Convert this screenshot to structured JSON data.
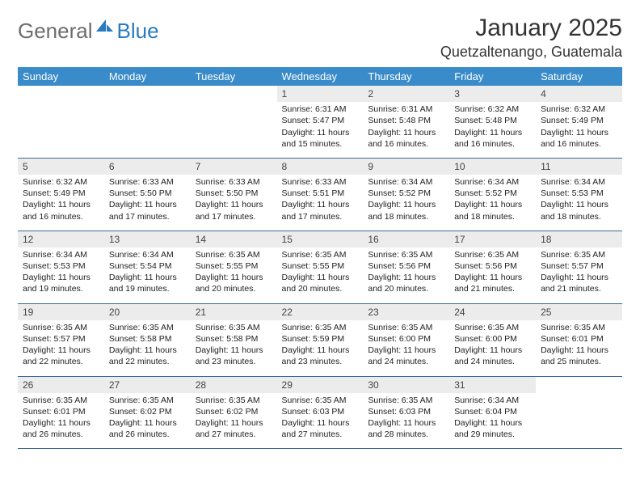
{
  "logo": {
    "text1": "General",
    "text2": "Blue"
  },
  "title": "January 2025",
  "location": "Quetzaltenango, Guatemala",
  "colors": {
    "header_bg": "#3a8bc9",
    "header_text": "#ffffff",
    "daynum_bg": "#ececec",
    "row_border": "#3a6b9a",
    "logo_gray": "#6c6c6c",
    "logo_blue": "#2a7bbf"
  },
  "weekdays": [
    "Sunday",
    "Monday",
    "Tuesday",
    "Wednesday",
    "Thursday",
    "Friday",
    "Saturday"
  ],
  "weeks": [
    [
      null,
      null,
      null,
      {
        "n": "1",
        "sr": "Sunrise: 6:31 AM",
        "ss": "Sunset: 5:47 PM",
        "d1": "Daylight: 11 hours",
        "d2": "and 15 minutes."
      },
      {
        "n": "2",
        "sr": "Sunrise: 6:31 AM",
        "ss": "Sunset: 5:48 PM",
        "d1": "Daylight: 11 hours",
        "d2": "and 16 minutes."
      },
      {
        "n": "3",
        "sr": "Sunrise: 6:32 AM",
        "ss": "Sunset: 5:48 PM",
        "d1": "Daylight: 11 hours",
        "d2": "and 16 minutes."
      },
      {
        "n": "4",
        "sr": "Sunrise: 6:32 AM",
        "ss": "Sunset: 5:49 PM",
        "d1": "Daylight: 11 hours",
        "d2": "and 16 minutes."
      }
    ],
    [
      {
        "n": "5",
        "sr": "Sunrise: 6:32 AM",
        "ss": "Sunset: 5:49 PM",
        "d1": "Daylight: 11 hours",
        "d2": "and 16 minutes."
      },
      {
        "n": "6",
        "sr": "Sunrise: 6:33 AM",
        "ss": "Sunset: 5:50 PM",
        "d1": "Daylight: 11 hours",
        "d2": "and 17 minutes."
      },
      {
        "n": "7",
        "sr": "Sunrise: 6:33 AM",
        "ss": "Sunset: 5:50 PM",
        "d1": "Daylight: 11 hours",
        "d2": "and 17 minutes."
      },
      {
        "n": "8",
        "sr": "Sunrise: 6:33 AM",
        "ss": "Sunset: 5:51 PM",
        "d1": "Daylight: 11 hours",
        "d2": "and 17 minutes."
      },
      {
        "n": "9",
        "sr": "Sunrise: 6:34 AM",
        "ss": "Sunset: 5:52 PM",
        "d1": "Daylight: 11 hours",
        "d2": "and 18 minutes."
      },
      {
        "n": "10",
        "sr": "Sunrise: 6:34 AM",
        "ss": "Sunset: 5:52 PM",
        "d1": "Daylight: 11 hours",
        "d2": "and 18 minutes."
      },
      {
        "n": "11",
        "sr": "Sunrise: 6:34 AM",
        "ss": "Sunset: 5:53 PM",
        "d1": "Daylight: 11 hours",
        "d2": "and 18 minutes."
      }
    ],
    [
      {
        "n": "12",
        "sr": "Sunrise: 6:34 AM",
        "ss": "Sunset: 5:53 PM",
        "d1": "Daylight: 11 hours",
        "d2": "and 19 minutes."
      },
      {
        "n": "13",
        "sr": "Sunrise: 6:34 AM",
        "ss": "Sunset: 5:54 PM",
        "d1": "Daylight: 11 hours",
        "d2": "and 19 minutes."
      },
      {
        "n": "14",
        "sr": "Sunrise: 6:35 AM",
        "ss": "Sunset: 5:55 PM",
        "d1": "Daylight: 11 hours",
        "d2": "and 20 minutes."
      },
      {
        "n": "15",
        "sr": "Sunrise: 6:35 AM",
        "ss": "Sunset: 5:55 PM",
        "d1": "Daylight: 11 hours",
        "d2": "and 20 minutes."
      },
      {
        "n": "16",
        "sr": "Sunrise: 6:35 AM",
        "ss": "Sunset: 5:56 PM",
        "d1": "Daylight: 11 hours",
        "d2": "and 20 minutes."
      },
      {
        "n": "17",
        "sr": "Sunrise: 6:35 AM",
        "ss": "Sunset: 5:56 PM",
        "d1": "Daylight: 11 hours",
        "d2": "and 21 minutes."
      },
      {
        "n": "18",
        "sr": "Sunrise: 6:35 AM",
        "ss": "Sunset: 5:57 PM",
        "d1": "Daylight: 11 hours",
        "d2": "and 21 minutes."
      }
    ],
    [
      {
        "n": "19",
        "sr": "Sunrise: 6:35 AM",
        "ss": "Sunset: 5:57 PM",
        "d1": "Daylight: 11 hours",
        "d2": "and 22 minutes."
      },
      {
        "n": "20",
        "sr": "Sunrise: 6:35 AM",
        "ss": "Sunset: 5:58 PM",
        "d1": "Daylight: 11 hours",
        "d2": "and 22 minutes."
      },
      {
        "n": "21",
        "sr": "Sunrise: 6:35 AM",
        "ss": "Sunset: 5:58 PM",
        "d1": "Daylight: 11 hours",
        "d2": "and 23 minutes."
      },
      {
        "n": "22",
        "sr": "Sunrise: 6:35 AM",
        "ss": "Sunset: 5:59 PM",
        "d1": "Daylight: 11 hours",
        "d2": "and 23 minutes."
      },
      {
        "n": "23",
        "sr": "Sunrise: 6:35 AM",
        "ss": "Sunset: 6:00 PM",
        "d1": "Daylight: 11 hours",
        "d2": "and 24 minutes."
      },
      {
        "n": "24",
        "sr": "Sunrise: 6:35 AM",
        "ss": "Sunset: 6:00 PM",
        "d1": "Daylight: 11 hours",
        "d2": "and 24 minutes."
      },
      {
        "n": "25",
        "sr": "Sunrise: 6:35 AM",
        "ss": "Sunset: 6:01 PM",
        "d1": "Daylight: 11 hours",
        "d2": "and 25 minutes."
      }
    ],
    [
      {
        "n": "26",
        "sr": "Sunrise: 6:35 AM",
        "ss": "Sunset: 6:01 PM",
        "d1": "Daylight: 11 hours",
        "d2": "and 26 minutes."
      },
      {
        "n": "27",
        "sr": "Sunrise: 6:35 AM",
        "ss": "Sunset: 6:02 PM",
        "d1": "Daylight: 11 hours",
        "d2": "and 26 minutes."
      },
      {
        "n": "28",
        "sr": "Sunrise: 6:35 AM",
        "ss": "Sunset: 6:02 PM",
        "d1": "Daylight: 11 hours",
        "d2": "and 27 minutes."
      },
      {
        "n": "29",
        "sr": "Sunrise: 6:35 AM",
        "ss": "Sunset: 6:03 PM",
        "d1": "Daylight: 11 hours",
        "d2": "and 27 minutes."
      },
      {
        "n": "30",
        "sr": "Sunrise: 6:35 AM",
        "ss": "Sunset: 6:03 PM",
        "d1": "Daylight: 11 hours",
        "d2": "and 28 minutes."
      },
      {
        "n": "31",
        "sr": "Sunrise: 6:34 AM",
        "ss": "Sunset: 6:04 PM",
        "d1": "Daylight: 11 hours",
        "d2": "and 29 minutes."
      },
      null
    ]
  ]
}
